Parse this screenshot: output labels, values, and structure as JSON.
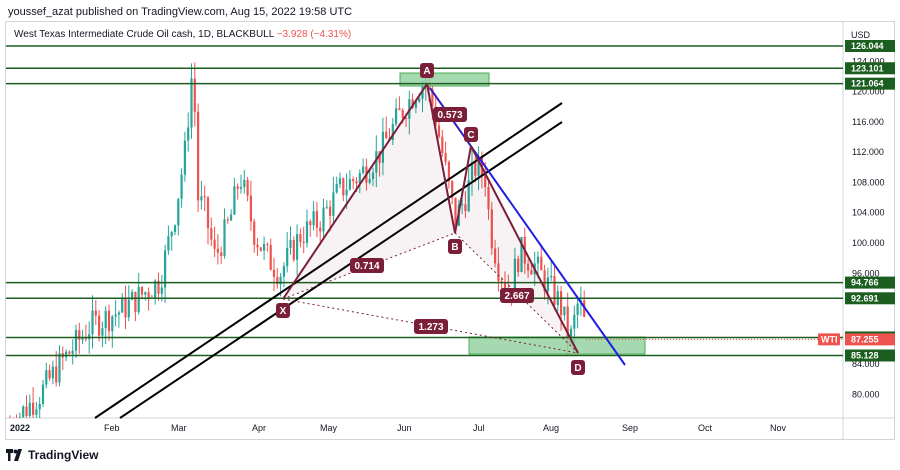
{
  "header": {
    "published": "youssef_azat published on TradingView.com, Aug 15, 2022 19:58 UTC"
  },
  "legend": {
    "symbol": "West Texas Intermediate Crude Oil cash, 1D, BLACKBULL",
    "change": "−3.928 (−4.31%)"
  },
  "currency": "USD",
  "footer": {
    "brand": "TradingView"
  },
  "colors": {
    "up": "#26a69a",
    "down": "#ef5350",
    "level": "#1b5e20",
    "zone": "#8fd19e",
    "pattern": "#7b1e3a",
    "trend": "#1f1fe0",
    "channel": "#000000",
    "ticker": "#ef5350"
  },
  "chart_data": {
    "type": "candlestick",
    "y_axis": {
      "min": 76,
      "max": 130,
      "ticks": [
        "124.000",
        "120.000",
        "116.000",
        "112.000",
        "108.000",
        "104.000",
        "100.000",
        "96.000",
        "84.000",
        "80.000"
      ]
    },
    "x_axis": {
      "ticks": [
        "2022",
        "Feb",
        "Mar",
        "Apr",
        "May",
        "Jun",
        "Jul",
        "Aug",
        "Sep",
        "Oct",
        "Nov"
      ]
    },
    "levels": [
      "126.044",
      "123.101",
      "121.064",
      "94.766",
      "92.691",
      "87.515",
      "85.128"
    ],
    "current_price": {
      "ticker": "WTI",
      "value": "87.255"
    },
    "pattern_labels": [
      "A",
      "B",
      "C",
      "D",
      "X"
    ],
    "ratios": [
      "0.573",
      "0.714",
      "2.667",
      "1.273"
    ]
  }
}
